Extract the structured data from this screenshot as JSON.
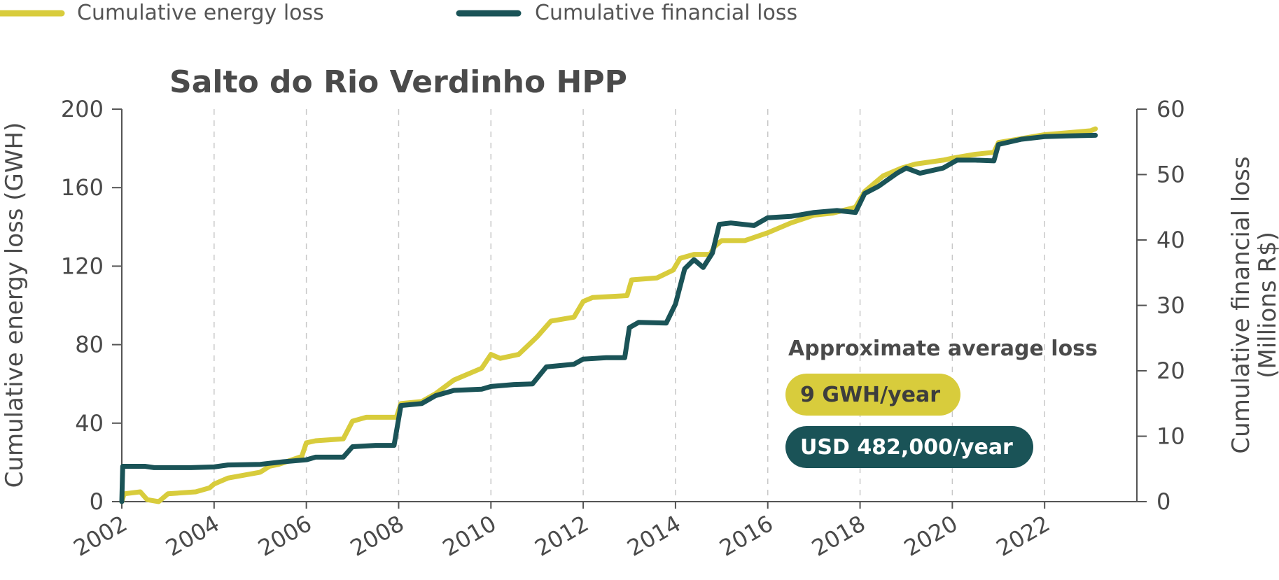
{
  "chart_data": {
    "type": "line",
    "title": "Salto do Rio Verdinho HPP",
    "x_ticks": [
      "2002",
      "2004",
      "2006",
      "2008",
      "2010",
      "2012",
      "2014",
      "2016",
      "2018",
      "2020",
      "2022"
    ],
    "xlim": [
      2002,
      2024
    ],
    "y_left": {
      "label": "Cumulative energy loss (GWH)",
      "range": [
        0,
        200
      ],
      "ticks": [
        "0",
        "40",
        "80",
        "120",
        "160",
        "200"
      ]
    },
    "y_right": {
      "label_line1": "Cumulative financial loss",
      "label_line2": "(Millions R$)",
      "range": [
        0,
        60
      ],
      "ticks": [
        "0",
        "10",
        "20",
        "30",
        "40",
        "50",
        "60"
      ]
    },
    "grid": "vertical dashed at x ticks",
    "legend_placement": "top",
    "series": [
      {
        "name": "Cumulative energy loss",
        "axis": "left",
        "color": "#d8cc3c",
        "points": [
          [
            2002.0,
            0
          ],
          [
            2002.05,
            4
          ],
          [
            2002.4,
            5
          ],
          [
            2002.55,
            1
          ],
          [
            2002.8,
            0
          ],
          [
            2003.0,
            4
          ],
          [
            2003.6,
            5
          ],
          [
            2003.9,
            7
          ],
          [
            2004.0,
            9
          ],
          [
            2004.3,
            12
          ],
          [
            2005.0,
            15
          ],
          [
            2005.2,
            18
          ],
          [
            2005.4,
            19
          ],
          [
            2005.9,
            23
          ],
          [
            2006.0,
            30
          ],
          [
            2006.2,
            31
          ],
          [
            2006.8,
            32
          ],
          [
            2007.0,
            41
          ],
          [
            2007.3,
            43
          ],
          [
            2007.95,
            43
          ],
          [
            2008.05,
            50
          ],
          [
            2008.5,
            51
          ],
          [
            2008.8,
            55
          ],
          [
            2009.2,
            62
          ],
          [
            2009.8,
            68
          ],
          [
            2010.0,
            75
          ],
          [
            2010.2,
            73
          ],
          [
            2010.6,
            75
          ],
          [
            2011.0,
            84
          ],
          [
            2011.3,
            92
          ],
          [
            2011.8,
            94
          ],
          [
            2012.0,
            102
          ],
          [
            2012.2,
            104
          ],
          [
            2012.95,
            105
          ],
          [
            2013.05,
            113
          ],
          [
            2013.6,
            114
          ],
          [
            2013.95,
            118
          ],
          [
            2014.1,
            124
          ],
          [
            2014.4,
            126
          ],
          [
            2014.75,
            126
          ],
          [
            2014.85,
            130
          ],
          [
            2015.0,
            133
          ],
          [
            2015.5,
            133
          ],
          [
            2016.0,
            137
          ],
          [
            2016.5,
            142
          ],
          [
            2017.0,
            146
          ],
          [
            2017.4,
            147
          ],
          [
            2017.9,
            150
          ],
          [
            2018.1,
            158
          ],
          [
            2018.5,
            166
          ],
          [
            2018.9,
            170
          ],
          [
            2019.2,
            172
          ],
          [
            2019.8,
            174
          ],
          [
            2020.0,
            175
          ],
          [
            2020.5,
            177
          ],
          [
            2020.9,
            178
          ],
          [
            2021.0,
            183
          ],
          [
            2021.5,
            185
          ],
          [
            2022.0,
            187
          ],
          [
            2022.5,
            188
          ],
          [
            2023.0,
            189
          ],
          [
            2023.1,
            190
          ]
        ]
      },
      {
        "name": "Cumulative financial loss",
        "axis": "right",
        "color": "#1a5357",
        "points": [
          [
            2002.0,
            0
          ],
          [
            2002.02,
            5.4
          ],
          [
            2002.5,
            5.4
          ],
          [
            2002.7,
            5.2
          ],
          [
            2003.5,
            5.2
          ],
          [
            2004.0,
            5.3
          ],
          [
            2004.3,
            5.6
          ],
          [
            2005.0,
            5.7
          ],
          [
            2005.5,
            6.1
          ],
          [
            2006.0,
            6.4
          ],
          [
            2006.2,
            6.8
          ],
          [
            2006.8,
            6.8
          ],
          [
            2007.0,
            8.4
          ],
          [
            2007.5,
            8.6
          ],
          [
            2007.9,
            8.6
          ],
          [
            2008.05,
            14.7
          ],
          [
            2008.5,
            15.0
          ],
          [
            2008.8,
            16.2
          ],
          [
            2009.2,
            17.0
          ],
          [
            2009.8,
            17.2
          ],
          [
            2010.0,
            17.6
          ],
          [
            2010.5,
            17.9
          ],
          [
            2010.9,
            18.0
          ],
          [
            2011.2,
            20.6
          ],
          [
            2011.8,
            21.0
          ],
          [
            2012.0,
            21.8
          ],
          [
            2012.5,
            22.0
          ],
          [
            2012.9,
            22.0
          ],
          [
            2013.0,
            26.6
          ],
          [
            2013.2,
            27.4
          ],
          [
            2013.8,
            27.3
          ],
          [
            2014.0,
            30.2
          ],
          [
            2014.2,
            35.6
          ],
          [
            2014.4,
            37.0
          ],
          [
            2014.6,
            35.8
          ],
          [
            2014.8,
            38.0
          ],
          [
            2014.95,
            42.4
          ],
          [
            2015.2,
            42.6
          ],
          [
            2015.7,
            42.2
          ],
          [
            2016.0,
            43.4
          ],
          [
            2016.5,
            43.6
          ],
          [
            2017.0,
            44.2
          ],
          [
            2017.5,
            44.5
          ],
          [
            2017.9,
            44.2
          ],
          [
            2018.1,
            47.1
          ],
          [
            2018.4,
            48.2
          ],
          [
            2018.8,
            50.2
          ],
          [
            2019.0,
            51.0
          ],
          [
            2019.3,
            50.2
          ],
          [
            2019.8,
            51.0
          ],
          [
            2020.1,
            52.2
          ],
          [
            2020.5,
            52.2
          ],
          [
            2020.9,
            52.1
          ],
          [
            2021.0,
            54.6
          ],
          [
            2021.5,
            55.4
          ],
          [
            2022.0,
            55.8
          ],
          [
            2022.5,
            55.9
          ],
          [
            2023.1,
            56.0
          ]
        ]
      }
    ],
    "annotations": {
      "heading": "Approximate average loss",
      "energy_badge": "9 GWH/year",
      "financial_badge": "USD 482,000/year"
    }
  }
}
